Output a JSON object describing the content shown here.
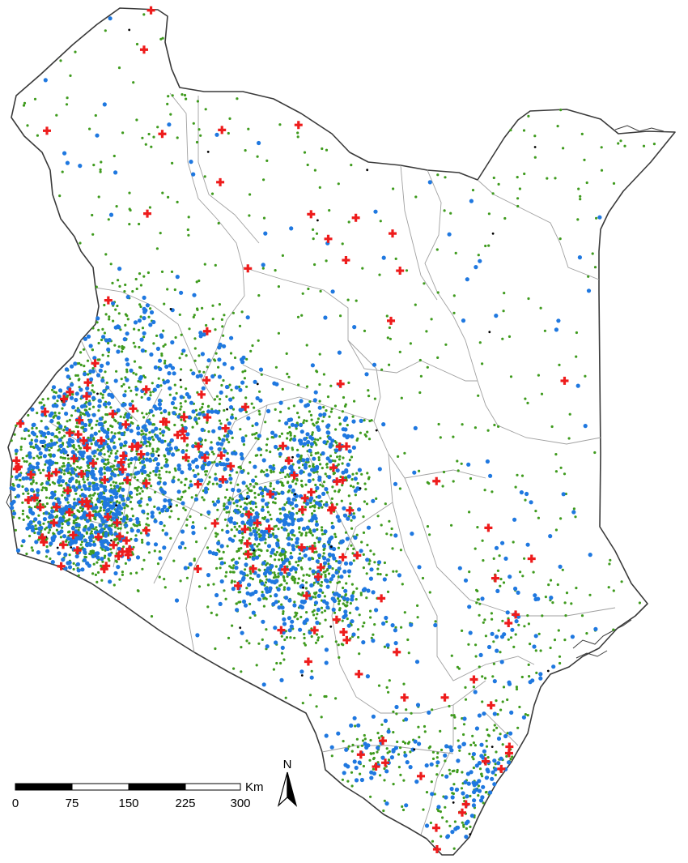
{
  "map": {
    "colors": {
      "background": "#ffffff",
      "land": "#ffffff",
      "border": "#3a3a3a",
      "inner_border": "#9a9a9a",
      "green_points": "#3f9b1e",
      "blue_points": "#1f78e0",
      "red_markers": "#ee1c1c",
      "black_points": "#000000"
    },
    "point_density": {
      "green_total_approx": 3000,
      "blue_total_approx": 1500,
      "red_markers_approx": 170
    }
  },
  "scale_bar": {
    "unit": "Km",
    "ticks": [
      "0",
      "75",
      "150",
      "225",
      "300"
    ]
  },
  "north_arrow": {
    "label": "N"
  }
}
